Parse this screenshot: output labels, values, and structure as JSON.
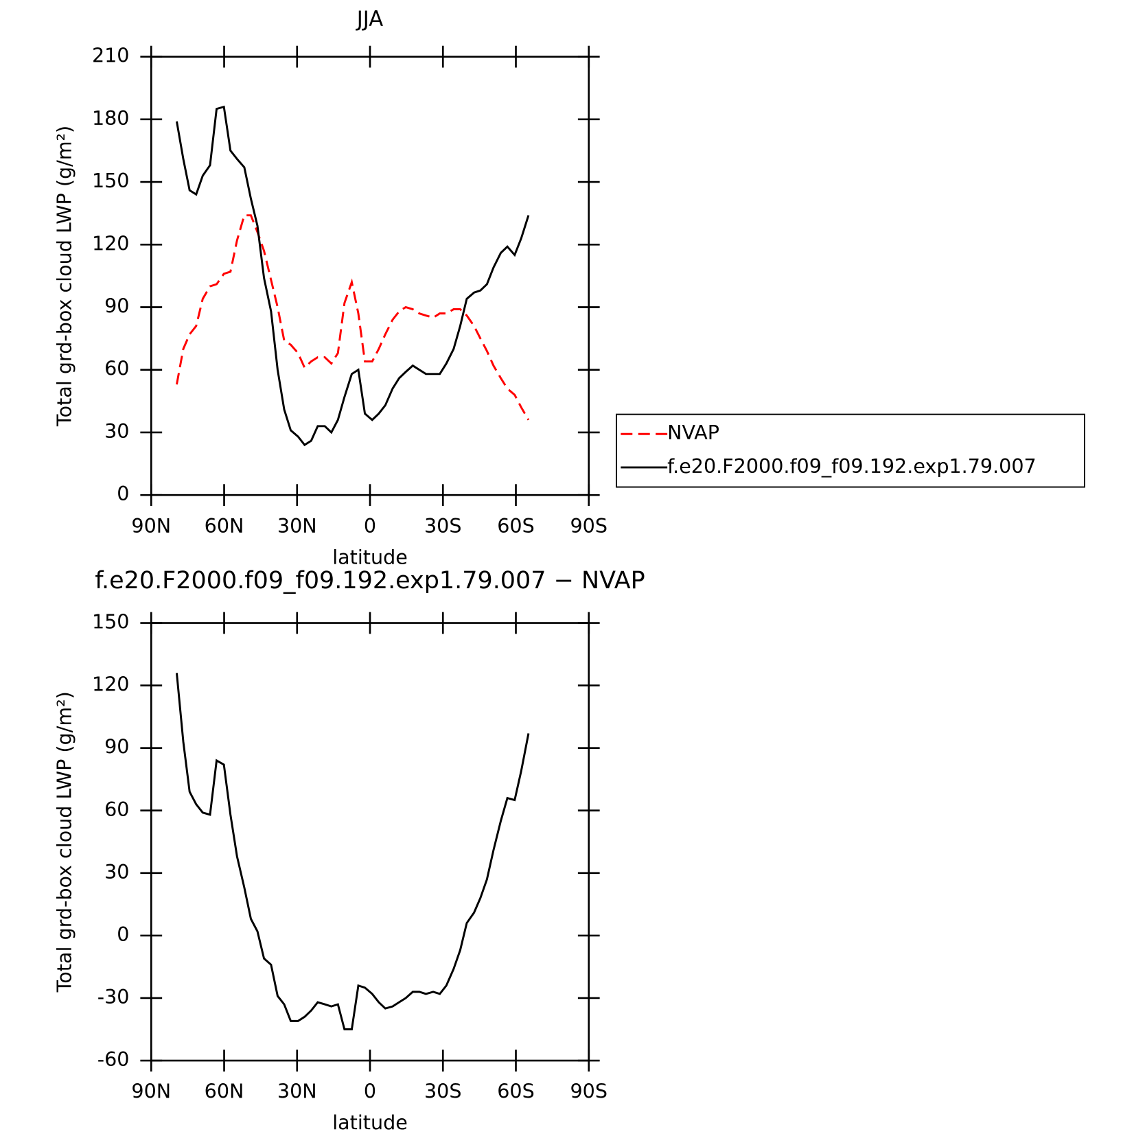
{
  "chart_data": [
    {
      "type": "line",
      "title": "JJA",
      "xlabel": "latitude",
      "ylabel": "Total grd-box cloud LWP (g/m²)",
      "x": [
        79.5,
        76.8,
        74.2,
        71.5,
        68.8,
        65.8,
        63.1,
        60.1,
        57.4,
        54.7,
        51.7,
        49.0,
        46.3,
        43.6,
        40.7,
        38.0,
        35.3,
        32.6,
        29.6,
        26.9,
        24.2,
        21.5,
        18.6,
        15.9,
        13.2,
        10.5,
        7.5,
        4.8,
        2.1,
        -0.9,
        -3.6,
        -6.3,
        -9.3,
        -12.0,
        -14.7,
        -17.6,
        -20.3,
        -23.0,
        -26.0,
        -28.7,
        -31.4,
        -34.4,
        -37.1,
        -39.8,
        -42.8,
        -45.4,
        -48.1,
        -50.8,
        -53.8,
        -56.5,
        -59.5,
        -62.2,
        -65.2
      ],
      "series": [
        {
          "name": "NVAP",
          "color": "#ff0000",
          "style": "dashed",
          "values": [
            53,
            70,
            77,
            81,
            94,
            100,
            101,
            106,
            107,
            122,
            134,
            134,
            126,
            117,
            103,
            90,
            74,
            72,
            68,
            61,
            64,
            66,
            66,
            63,
            68,
            92,
            102,
            87,
            64,
            64,
            70,
            77,
            84,
            88,
            90,
            89,
            87,
            86,
            85,
            87,
            87,
            89,
            89,
            86,
            81,
            75,
            69,
            62,
            56,
            51,
            48,
            42,
            36
          ]
        },
        {
          "name": "f.e20.F2000.f09_f09.192.exp1.79.007",
          "color": "#000000",
          "style": "solid",
          "values": [
            179,
            161,
            146,
            144,
            153,
            158,
            185,
            186,
            165,
            161,
            157,
            142,
            129,
            104,
            88,
            60,
            41,
            31,
            28,
            24,
            26,
            33,
            33,
            30,
            36,
            47,
            58,
            60,
            39,
            36,
            39,
            43,
            51,
            56,
            59,
            62,
            60,
            58,
            58,
            58,
            63,
            70,
            81,
            94,
            97,
            98,
            101,
            109,
            116,
            119,
            115,
            123,
            134
          ]
        }
      ],
      "xlim": [
        90,
        -90
      ],
      "xticks": [
        {
          "value": 90,
          "label": "90N"
        },
        {
          "value": 60,
          "label": "60N"
        },
        {
          "value": 30,
          "label": "30N"
        },
        0,
        {
          "value": -30,
          "label": "30S"
        },
        {
          "value": -60,
          "label": "60S"
        },
        {
          "value": -90,
          "label": "90S"
        }
      ],
      "ylim": [
        0,
        210
      ],
      "yticks": [
        0,
        30,
        60,
        90,
        120,
        150,
        180,
        210
      ],
      "legend": "right"
    },
    {
      "type": "line",
      "title": "f.e20.F2000.f09_f09.192.exp1.79.007 − NVAP",
      "xlabel": "latitude",
      "ylabel": "Total grd-box cloud LWP (g/m²)",
      "x": [
        79.5,
        76.8,
        74.2,
        71.5,
        68.8,
        65.8,
        63.1,
        60.1,
        57.4,
        54.7,
        51.7,
        49.0,
        46.3,
        43.6,
        40.7,
        38.0,
        35.3,
        32.6,
        29.6,
        26.9,
        24.2,
        21.5,
        18.6,
        15.9,
        13.2,
        10.5,
        7.5,
        4.8,
        2.1,
        -0.9,
        -3.6,
        -6.3,
        -9.3,
        -12.0,
        -14.7,
        -17.6,
        -20.3,
        -23.0,
        -26.0,
        -28.7,
        -31.4,
        -34.4,
        -37.1,
        -39.8,
        -42.8,
        -45.4,
        -48.1,
        -50.8,
        -53.8,
        -56.5,
        -59.5,
        -62.2,
        -65.2
      ],
      "series": [
        {
          "color": "#000000",
          "style": "solid",
          "values": [
            126,
            93,
            69,
            63,
            59,
            58,
            84,
            82,
            58,
            38,
            23,
            8,
            2,
            -11,
            -14,
            -29,
            -33,
            -41,
            -41,
            -39,
            -36,
            -32,
            -33,
            -34,
            -33,
            -45,
            -45,
            -24,
            -25,
            -28,
            -32,
            -35,
            -34,
            -32,
            -30,
            -27,
            -27,
            -28,
            -27,
            -28,
            -24,
            -16,
            -7,
            6,
            11,
            18,
            27,
            41,
            55,
            66,
            65,
            79,
            97
          ]
        }
      ],
      "xlim": [
        90,
        -90
      ],
      "xticks": [
        {
          "value": 90,
          "label": "90N"
        },
        {
          "value": 60,
          "label": "60N"
        },
        {
          "value": 30,
          "label": "30N"
        },
        0,
        {
          "value": -30,
          "label": "30S"
        },
        {
          "value": -60,
          "label": "60S"
        },
        {
          "value": -90,
          "label": "90S"
        }
      ],
      "ylim": [
        -60,
        150
      ],
      "yticks": [
        -60,
        -30,
        0,
        30,
        60,
        90,
        120,
        150
      ]
    }
  ]
}
